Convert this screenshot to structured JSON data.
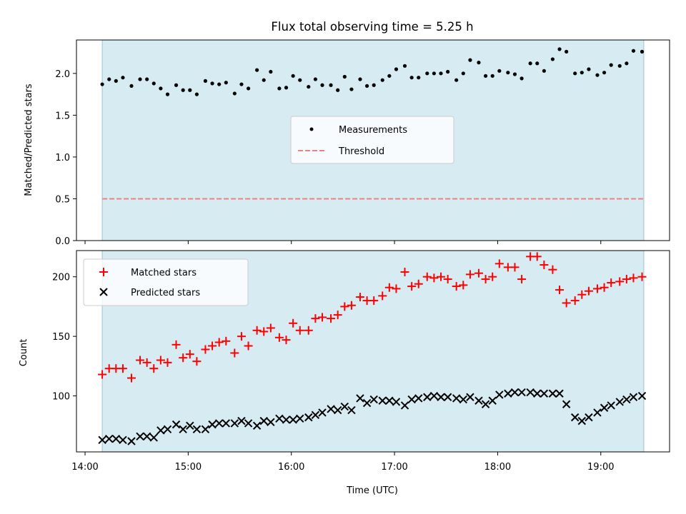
{
  "chart_data": [
    {
      "type": "scatter",
      "title": "Flux total observing time = 5.25 h",
      "xlabel": "",
      "ylabel": "Matched/Predicted stars",
      "ylim": [
        0,
        2.4
      ],
      "yticks": [
        0.0,
        0.5,
        1.0,
        1.5,
        2.0
      ],
      "ytick_labels": [
        "0.0",
        "0.5",
        "1.0",
        "1.5",
        "2.0"
      ],
      "xlim": [
        "13:55",
        "19:40"
      ],
      "observing_window": [
        "14:10",
        "19:25"
      ],
      "grid": false,
      "legend_position": "center",
      "x": [
        "14:10",
        "14:14",
        "14:18",
        "14:22",
        "14:27",
        "14:32",
        "14:36",
        "14:40",
        "14:44",
        "14:48",
        "14:53",
        "14:57",
        "15:01",
        "15:05",
        "15:10",
        "15:14",
        "15:18",
        "15:22",
        "15:27",
        "15:31",
        "15:35",
        "15:40",
        "15:44",
        "15:48",
        "15:53",
        "15:57",
        "16:01",
        "16:05",
        "16:10",
        "16:14",
        "16:18",
        "16:23",
        "16:27",
        "16:31",
        "16:35",
        "16:40",
        "16:44",
        "16:48",
        "16:53",
        "16:57",
        "17:01",
        "17:06",
        "17:10",
        "17:14",
        "17:19",
        "17:23",
        "17:27",
        "17:31",
        "17:36",
        "17:40",
        "17:44",
        "17:49",
        "17:53",
        "17:57",
        "18:01",
        "18:06",
        "18:10",
        "18:14",
        "18:19",
        "18:23",
        "18:27",
        "18:32",
        "18:36",
        "18:40",
        "18:45",
        "18:49",
        "18:53",
        "18:58",
        "19:02",
        "19:06",
        "19:11",
        "19:15",
        "19:19",
        "19:24"
      ],
      "series": [
        {
          "name": "Measurements",
          "marker": "dot",
          "color": "#000000",
          "values": [
            1.87,
            1.93,
            1.91,
            1.95,
            1.85,
            1.93,
            1.93,
            1.88,
            1.82,
            1.75,
            1.86,
            1.8,
            1.8,
            1.75,
            1.91,
            1.88,
            1.87,
            1.89,
            1.76,
            1.87,
            1.82,
            2.04,
            1.92,
            2.02,
            1.82,
            1.83,
            1.97,
            1.92,
            1.84,
            1.93,
            1.86,
            1.86,
            1.8,
            1.96,
            1.81,
            1.93,
            1.85,
            1.86,
            1.92,
            1.97,
            2.05,
            2.09,
            1.95,
            1.95,
            2.0,
            2.0,
            2.0,
            2.02,
            1.92,
            2.0,
            2.16,
            2.13,
            1.97,
            1.97,
            2.03,
            2.01,
            1.99,
            1.94,
            2.12,
            2.12,
            2.03,
            2.17,
            2.29,
            2.26,
            2.0,
            2.01,
            2.05,
            1.98,
            2.01,
            2.1,
            2.09,
            2.12,
            2.27,
            2.26
          ]
        },
        {
          "name": "Threshold",
          "marker": "dashed-line",
          "color": "#f08080",
          "values": [
            0.5
          ]
        }
      ]
    },
    {
      "type": "scatter",
      "title": "",
      "xlabel": "Time (UTC)",
      "ylabel": "Count",
      "ylim": [
        53,
        222
      ],
      "yticks": [
        100,
        150,
        200
      ],
      "ytick_labels": [
        "100",
        "150",
        "200"
      ],
      "xlim": [
        "13:55",
        "19:40"
      ],
      "xticks": [
        "14:00",
        "15:00",
        "16:00",
        "17:00",
        "18:00",
        "19:00"
      ],
      "xtick_labels": [
        "14:00",
        "15:00",
        "16:00",
        "17:00",
        "18:00",
        "19:00"
      ],
      "observing_window": [
        "14:10",
        "19:25"
      ],
      "grid": false,
      "legend_position": "upper left",
      "x": [
        "14:10",
        "14:14",
        "14:18",
        "14:22",
        "14:27",
        "14:32",
        "14:36",
        "14:40",
        "14:44",
        "14:48",
        "14:53",
        "14:57",
        "15:01",
        "15:05",
        "15:10",
        "15:14",
        "15:18",
        "15:22",
        "15:27",
        "15:31",
        "15:35",
        "15:40",
        "15:44",
        "15:48",
        "15:53",
        "15:57",
        "16:01",
        "16:05",
        "16:10",
        "16:14",
        "16:18",
        "16:23",
        "16:27",
        "16:31",
        "16:35",
        "16:40",
        "16:44",
        "16:48",
        "16:53",
        "16:57",
        "17:01",
        "17:06",
        "17:10",
        "17:14",
        "17:19",
        "17:23",
        "17:27",
        "17:31",
        "17:36",
        "17:40",
        "17:44",
        "17:49",
        "17:53",
        "17:57",
        "18:01",
        "18:06",
        "18:10",
        "18:14",
        "18:19",
        "18:23",
        "18:27",
        "18:32",
        "18:36",
        "18:40",
        "18:45",
        "18:49",
        "18:53",
        "18:58",
        "19:02",
        "19:06",
        "19:11",
        "19:15",
        "19:19",
        "19:24"
      ],
      "series": [
        {
          "name": "Matched stars",
          "marker": "plus",
          "color": "#ff0000",
          "values": [
            118,
            123,
            123,
            123,
            115,
            130,
            128,
            123,
            130,
            128,
            143,
            132,
            135,
            129,
            139,
            142,
            145,
            146,
            136,
            150,
            142,
            155,
            154,
            157,
            149,
            147,
            161,
            155,
            155,
            165,
            166,
            165,
            168,
            175,
            176,
            183,
            180,
            180,
            184,
            191,
            190,
            204,
            192,
            194,
            200,
            199,
            200,
            198,
            192,
            193,
            202,
            203,
            198,
            200,
            211,
            208,
            208,
            198,
            217,
            217,
            210,
            206,
            189,
            178,
            180,
            185,
            188,
            190,
            191,
            195,
            196,
            198,
            199,
            200
          ]
        },
        {
          "name": "Predicted stars",
          "marker": "x",
          "color": "#000000",
          "values": [
            63,
            64,
            64,
            63,
            62,
            66,
            66,
            65,
            71,
            72,
            76,
            72,
            75,
            72,
            72,
            76,
            77,
            77,
            77,
            79,
            77,
            75,
            79,
            78,
            81,
            80,
            80,
            81,
            82,
            84,
            86,
            89,
            88,
            91,
            88,
            98,
            94,
            97,
            96,
            96,
            95,
            92,
            97,
            98,
            99,
            100,
            99,
            99,
            98,
            97,
            99,
            96,
            93,
            96,
            101,
            102,
            103,
            103,
            103,
            102,
            102,
            102,
            102,
            93,
            82,
            79,
            82,
            86,
            90,
            92,
            95,
            97,
            99,
            100
          ]
        }
      ]
    }
  ]
}
